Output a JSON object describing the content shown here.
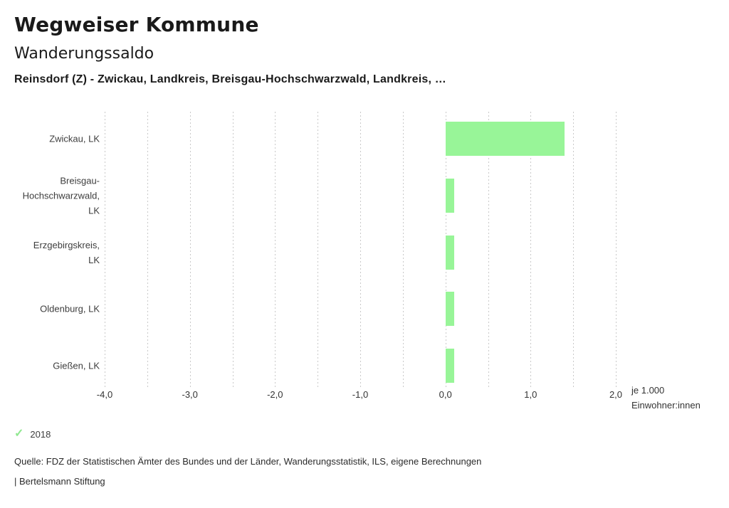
{
  "header": {
    "app_title": "Wegweiser Kommune",
    "chart_title": "Wanderungssaldo",
    "subtitle": "Reinsdorf (Z) - Zwickau, Landkreis, Breisgau-Hochschwarzwald, Landkreis, …"
  },
  "chart_data": {
    "type": "bar",
    "orientation": "horizontal",
    "title": "Wanderungssaldo",
    "categories": [
      "Zwickau, LK",
      "Breisgau-Hochschwarzwald, LK",
      "Erzgebirgskreis, LK",
      "Oldenburg, LK",
      "Gießen, LK"
    ],
    "series": [
      {
        "name": "2018",
        "values": [
          1.4,
          0.1,
          0.1,
          0.1,
          0.1
        ]
      }
    ],
    "xlim": [
      -4.0,
      2.0
    ],
    "xticks": [
      -4,
      -3,
      -2,
      -1,
      0,
      1,
      2
    ],
    "xtick_labels": [
      "-4,0",
      "-3,0",
      "-2,0",
      "-1,0",
      "0,0",
      "1,0",
      "2,0"
    ],
    "gridline_step": 0.5,
    "grid": "vertical dotted",
    "unit_label_lines": [
      "je 1.000",
      "Einwohner:innen"
    ],
    "bar_color": "#98f598",
    "legend_position": "bottom-left"
  },
  "legend": {
    "check_icon": "✓",
    "check_color": "#90e890",
    "year": "2018"
  },
  "footer": {
    "source": "Quelle: FDZ der Statistischen Ämter des Bundes und der Länder, Wanderungsstatistik, ILS, eigene Berechnungen",
    "brand": "| Bertelsmann Stiftung"
  }
}
